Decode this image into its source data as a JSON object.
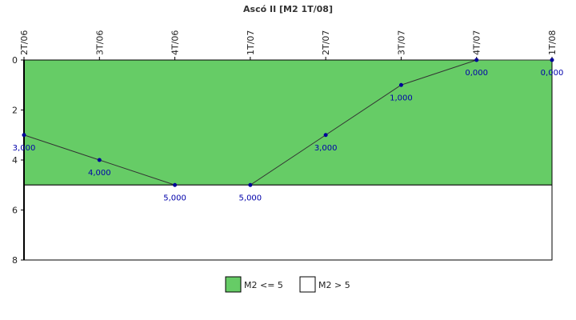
{
  "chart_data": {
    "type": "line",
    "title": "Ascó II [M2 1T/08]",
    "categories": [
      "2T/06",
      "3T/06",
      "4T/06",
      "1T/07",
      "2T/07",
      "3T/07",
      "4T/07",
      "1T/08"
    ],
    "values": [
      3,
      4,
      5,
      5,
      3,
      1,
      0,
      0
    ],
    "data_labels": [
      "3,000",
      "4,000",
      "5,000",
      "5,000",
      "3,000",
      "1,000",
      "0,000",
      "0,000"
    ],
    "ylim": [
      0,
      8
    ],
    "y_inverted": true,
    "y_ticks": [
      0,
      2,
      4,
      6,
      8
    ],
    "y_tick_labels": [
      "0",
      "2",
      "4",
      "6",
      "8"
    ],
    "threshold": 5,
    "grid": false,
    "legend_position": "bottom",
    "legend": [
      {
        "label": "M2 <= 5",
        "color": "#66cc66"
      },
      {
        "label": "M2 > 5",
        "color": "#ffffff"
      }
    ],
    "colors": {
      "line": "#333333",
      "marker": "#000099",
      "data_label": "#0000aa",
      "band_low": "#66cc66",
      "band_high": "#ffffff"
    }
  }
}
